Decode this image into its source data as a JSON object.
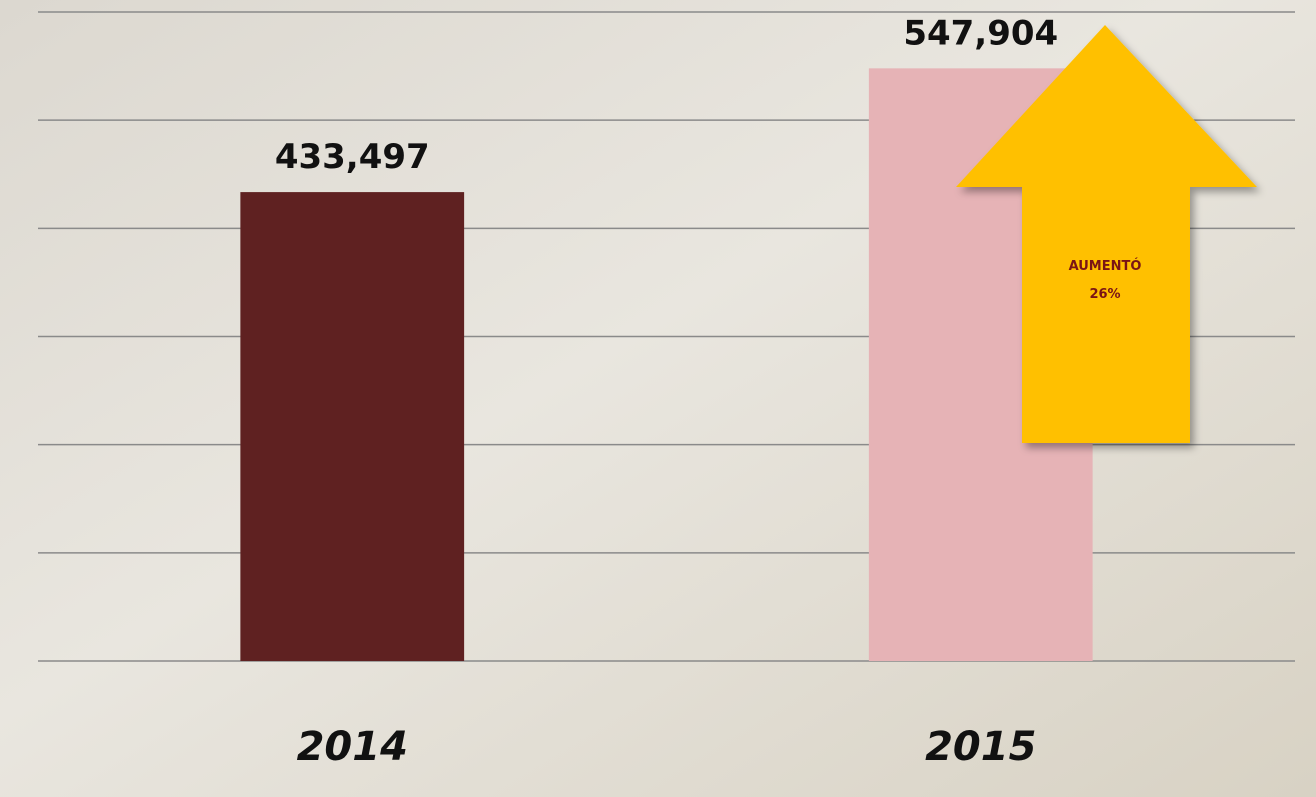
{
  "chart_data": {
    "type": "bar",
    "categories": [
      "2014",
      "2015"
    ],
    "values": [
      433497,
      547904
    ],
    "value_labels": [
      "433,497",
      "547,904"
    ],
    "colors": [
      "#5f2121",
      "#e6b3b6"
    ],
    "ylim": [
      0,
      600000
    ],
    "yticks": [
      0,
      100000,
      200000,
      300000,
      400000,
      500000,
      600000
    ],
    "grid": true,
    "annotation_lines": [
      "AUMENTÓ",
      "26%"
    ]
  }
}
